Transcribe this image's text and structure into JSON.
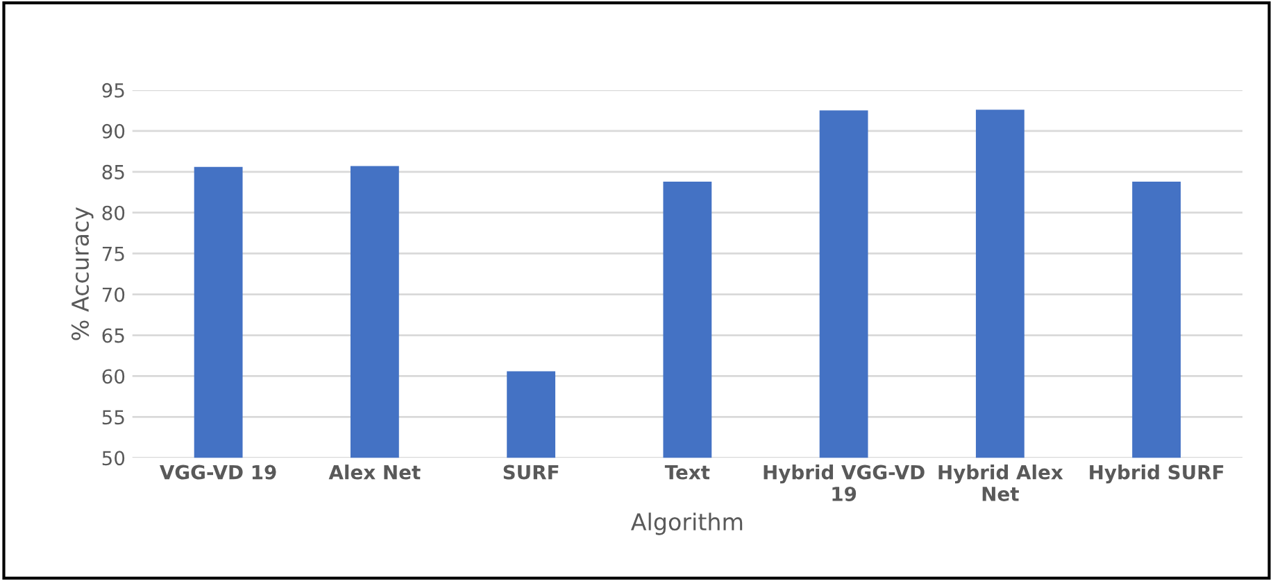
{
  "chart_data": {
    "type": "bar",
    "xlabel": "Algorithm",
    "ylabel": "% Accuracy",
    "categories": [
      "VGG-VD 19",
      "Alex Net",
      "SURF",
      "Text",
      "Hybrid VGG-VD\n19",
      "Hybrid Alex\nNet",
      "Hybrid SURF"
    ],
    "values": [
      85.6,
      85.7,
      60.6,
      83.8,
      92.5,
      92.6,
      83.8
    ],
    "color": "#4472c4",
    "ylim": [
      50,
      95
    ],
    "yticks": [
      50,
      55,
      60,
      65,
      70,
      75,
      80,
      85,
      90,
      95
    ],
    "grid": "y",
    "legend": false
  }
}
